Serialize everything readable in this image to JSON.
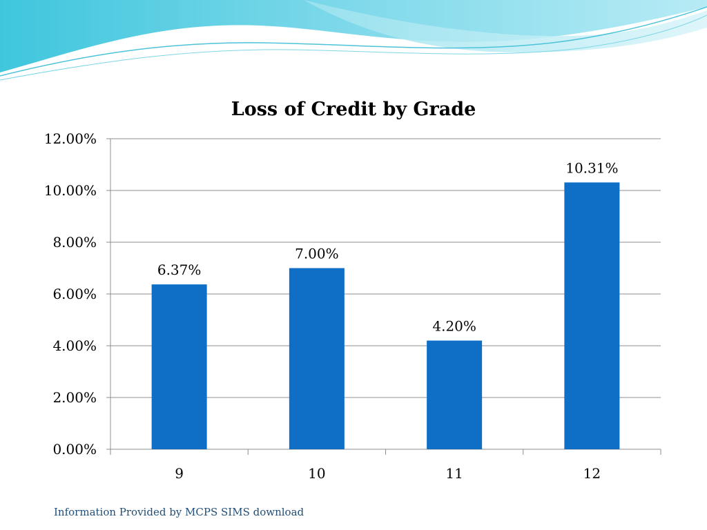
{
  "slide": {
    "footer_text": "Information Provided by  MCPS SIMS download"
  },
  "theme": {
    "bar_color": "#0f6fc6",
    "grid_color": "#8c8c8c",
    "footer_color": "#1f4e79",
    "wave_colors": [
      "#3fc6dd",
      "#8fe0ee",
      "#c9eff6"
    ]
  },
  "chart_data": {
    "type": "bar",
    "title": "Loss of Credit by Grade",
    "xlabel": "",
    "ylabel": "",
    "categories": [
      "9",
      "10",
      "11",
      "12"
    ],
    "values": [
      6.37,
      7.0,
      4.2,
      10.31
    ],
    "data_labels": [
      "6.37%",
      "7.00%",
      "4.20%",
      "10.31%"
    ],
    "ylim": [
      0,
      12
    ],
    "yticks": [
      0,
      2,
      4,
      6,
      8,
      10,
      12
    ],
    "ytick_labels": [
      "0.00%",
      "2.00%",
      "4.00%",
      "6.00%",
      "8.00%",
      "10.00%",
      "12.00%"
    ],
    "grid": true,
    "legend": "none"
  }
}
